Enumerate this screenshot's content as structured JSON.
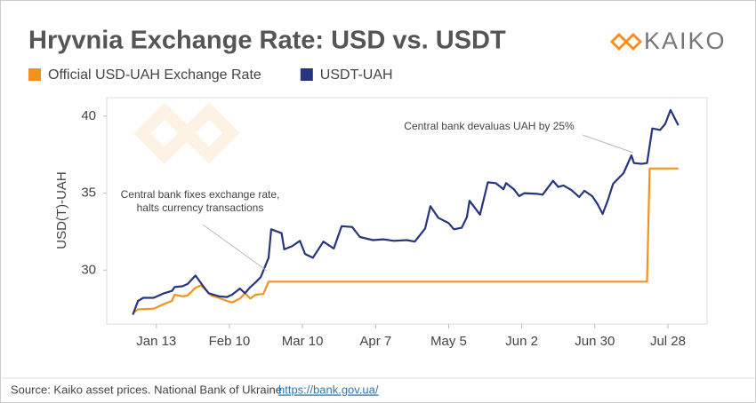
{
  "chart_data": {
    "type": "line",
    "title": "Hryvnia Exchange Rate: USD vs. USDT",
    "brand": "KAIKO",
    "y_label": "USD(T)-UAH",
    "xlim": [
      "Dec 25",
      "Aug 12"
    ],
    "xticks": [
      "Jan 13",
      "Feb 10",
      "Mar 10",
      "Apr 7",
      "May 5",
      "Jun 2",
      "Jun 30",
      "Jul 28"
    ],
    "ylim": [
      26.5,
      41.2
    ],
    "yticks": [
      30,
      35,
      40
    ],
    "grid": false,
    "series": [
      {
        "name": "Official USD-UAH Exchange Rate",
        "color": "#f5921e",
        "x": [
          "Jan 4",
          "Jan 6",
          "Jan 12",
          "Jan 16",
          "Jan 19",
          "Jan 20",
          "Jan 23",
          "Jan 25",
          "Jan 28",
          "Jan 30",
          "Feb 1",
          "Feb 3",
          "Feb 6",
          "Feb 9",
          "Feb 11",
          "Feb 14",
          "Feb 16",
          "Feb 18",
          "Feb 20",
          "Feb 23",
          "Feb 25",
          "Jul 20",
          "Jul 21",
          "Aug 1"
        ],
        "values": [
          27.2,
          27.45,
          27.5,
          27.8,
          28.0,
          28.4,
          28.3,
          28.35,
          28.85,
          29.0,
          28.7,
          28.35,
          28.2,
          28.0,
          27.9,
          28.15,
          28.5,
          28.15,
          28.4,
          28.45,
          29.25,
          29.25,
          36.6,
          36.6
        ]
      },
      {
        "name": "USDT-UAH",
        "color": "#27357f",
        "x": [
          "Jan 4",
          "Jan 6",
          "Jan 8",
          "Jan 12",
          "Jan 16",
          "Jan 19",
          "Jan 20",
          "Jan 23",
          "Jan 25",
          "Jan 28",
          "Jan 31",
          "Feb 2",
          "Feb 6",
          "Feb 9",
          "Feb 11",
          "Feb 14",
          "Feb 16",
          "Feb 18",
          "Feb 20",
          "Feb 22",
          "Feb 25",
          "Feb 26",
          "Mar 2",
          "Mar 3",
          "Mar 6",
          "Mar 9",
          "Mar 11",
          "Mar 14",
          "Mar 18",
          "Mar 22",
          "Mar 25",
          "Mar 29",
          "Apr 1",
          "Apr 6",
          "Apr 10",
          "Apr 14",
          "Apr 19",
          "Apr 22",
          "Apr 26",
          "Apr 28",
          "May 1",
          "May 5",
          "May 7",
          "May 10",
          "May 12",
          "May 13",
          "May 17",
          "May 20",
          "May 23",
          "May 26",
          "May 27",
          "May 30",
          "Jun 1",
          "Jun 3",
          "Jun 8",
          "Jun 10",
          "Jun 14",
          "Jun 16",
          "Jun 18",
          "Jun 21",
          "Jun 24",
          "Jun 26",
          "Jun 29",
          "Jul 1",
          "Jul 3",
          "Jul 5",
          "Jul 7",
          "Jul 11",
          "Jul 14",
          "Jul 15",
          "Jul 18",
          "Jul 20",
          "Jul 22",
          "Jul 25",
          "Jul 27",
          "Jul 29",
          "Aug 1"
        ],
        "values": [
          27.1,
          28.0,
          28.2,
          28.2,
          28.5,
          28.65,
          28.9,
          28.95,
          29.1,
          29.65,
          28.95,
          28.5,
          28.3,
          28.25,
          28.4,
          28.8,
          28.5,
          28.9,
          29.2,
          29.55,
          30.8,
          32.65,
          32.4,
          31.35,
          31.55,
          31.9,
          31.05,
          30.8,
          31.85,
          31.4,
          32.85,
          32.8,
          32.15,
          31.95,
          32.0,
          31.9,
          31.95,
          31.85,
          32.7,
          34.15,
          33.4,
          33.05,
          32.65,
          32.75,
          33.45,
          34.5,
          33.6,
          35.7,
          35.65,
          35.25,
          35.65,
          35.25,
          34.8,
          35.0,
          34.95,
          34.9,
          35.8,
          35.4,
          35.5,
          35.2,
          34.75,
          35.15,
          34.8,
          34.3,
          33.65,
          34.55,
          35.6,
          36.3,
          37.45,
          36.95,
          36.9,
          36.95,
          39.2,
          39.1,
          39.5,
          40.4,
          39.4
        ]
      }
    ],
    "annotations": [
      {
        "text": [
          "Central bank fixes exchange rate,",
          "halts currency transactions"
        ]
      },
      {
        "text": [
          "Central bank devaluas UAH by 25%"
        ]
      }
    ],
    "source": {
      "text": "Source: Kaiko asset prices. National Bank of Ukraine",
      "link": "https://bank.gov.ua/"
    }
  }
}
